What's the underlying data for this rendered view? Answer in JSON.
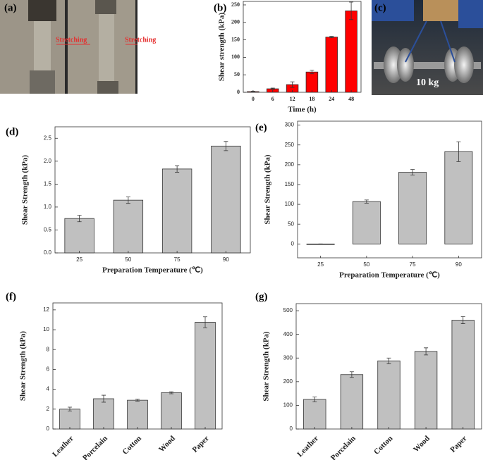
{
  "photos": [
    {
      "label": "(a)",
      "texts": [
        "Stretching",
        "Stretching"
      ]
    },
    {
      "label": "(c)",
      "texts": [
        "10 kg"
      ]
    }
  ],
  "chart_data": [
    {
      "type": "bar",
      "panel_label": "(b)",
      "xlabel": "Time (h)",
      "ylabel": "Shear strength (kPa)",
      "categories": [
        "0",
        "6",
        "12",
        "18",
        "24",
        "48"
      ],
      "values": [
        2,
        10,
        22,
        58,
        158,
        233
      ],
      "errors": [
        1,
        2,
        8,
        5,
        2,
        25
      ],
      "color": "#ff0000",
      "ylim": [
        0,
        260
      ],
      "yticks": [
        0,
        50,
        100,
        150,
        200,
        250
      ]
    },
    {
      "type": "bar",
      "panel_label": "(d)",
      "xlabel": "Preparation Temperature (℃)",
      "ylabel": "Shear Strength (kPa)",
      "categories": [
        "25",
        "50",
        "75",
        "90"
      ],
      "values": [
        0.75,
        1.15,
        1.83,
        2.33
      ],
      "errors": [
        0.07,
        0.07,
        0.07,
        0.1
      ],
      "color": "#c0c0c0",
      "ylim": [
        0,
        2.75
      ],
      "yticks": [
        {
          "value": 0,
          "label": "0.0"
        },
        0.5,
        {
          "value": 1,
          "label": "1.0"
        },
        1.5,
        {
          "value": 2,
          "label": "2.0"
        },
        2.5
      ]
    },
    {
      "type": "bar",
      "panel_label": "(e)",
      "xlabel": "Preparation Temperature (℃)",
      "ylabel": "Shear Strength (kPa)",
      "categories": [
        "25",
        "50",
        "75",
        "90"
      ],
      "values": [
        0,
        107,
        181,
        233
      ],
      "errors": [
        0,
        4,
        7,
        25
      ],
      "color": "#c0c0c0",
      "ylim": [
        -35,
        310
      ],
      "yticks": [
        0,
        50,
        100,
        150,
        200,
        250,
        300
      ]
    },
    {
      "type": "bar",
      "panel_label": "(f)",
      "ylabel": "Shear Strength (kPa)",
      "categories": [
        "Leather",
        "Porcelain",
        "Cotton",
        "Wood",
        "Paper"
      ],
      "values": [
        2.0,
        3.05,
        2.9,
        3.65,
        10.75
      ],
      "errors": [
        0.2,
        0.35,
        0.1,
        0.1,
        0.55
      ],
      "color": "#c0c0c0",
      "ylim": [
        0,
        12.7
      ],
      "yticks": [
        0,
        2,
        4,
        6,
        8,
        10,
        12
      ],
      "xtick_rotation": -45
    },
    {
      "type": "bar",
      "panel_label": "(g)",
      "ylabel": "Shear Strength (kPa)",
      "categories": [
        "Leather",
        "Porcelain",
        "Cotton",
        "Wood",
        "Paper"
      ],
      "values": [
        125,
        230,
        288,
        328,
        460
      ],
      "errors": [
        10,
        12,
        12,
        15,
        15
      ],
      "color": "#c0c0c0",
      "ylim": [
        0,
        530
      ],
      "yticks": [
        0,
        100,
        200,
        300,
        400,
        500
      ],
      "xtick_rotation": -45
    }
  ]
}
